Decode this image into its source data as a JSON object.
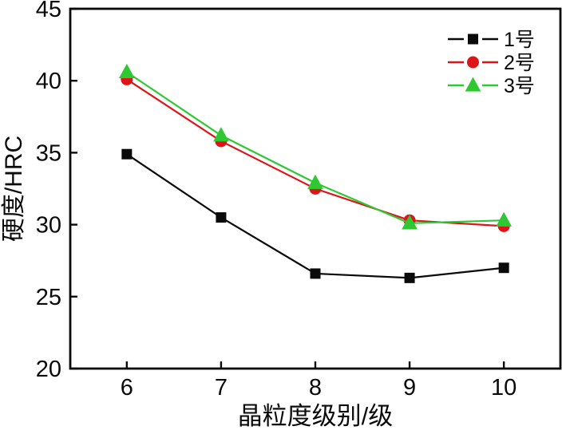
{
  "chart_data": {
    "type": "line",
    "title": "",
    "xlabel": "晶粒度级别/级",
    "ylabel": "硬度/HRC",
    "x": [
      6,
      7,
      8,
      9,
      10
    ],
    "xticks": [
      "6",
      "7",
      "8",
      "9",
      "10"
    ],
    "yticks": [
      45,
      40,
      35,
      30,
      25,
      20
    ],
    "xlim": [
      5.4,
      10.6
    ],
    "ylim": [
      20,
      45
    ],
    "grid": false,
    "legend_position": "top-right-inside",
    "axis_color": "#0a0a0a",
    "series": [
      {
        "name": "1号",
        "color": "#0a0a0a",
        "marker": "square",
        "values": [
          34.9,
          30.5,
          26.6,
          26.3,
          27.0
        ]
      },
      {
        "name": "2号",
        "color": "#dd1518",
        "marker": "circle",
        "values": [
          40.1,
          35.8,
          32.5,
          30.3,
          29.9
        ]
      },
      {
        "name": "3号",
        "color": "#2fc833",
        "marker": "triangle",
        "values": [
          40.6,
          36.2,
          32.9,
          30.1,
          30.3
        ]
      }
    ]
  }
}
